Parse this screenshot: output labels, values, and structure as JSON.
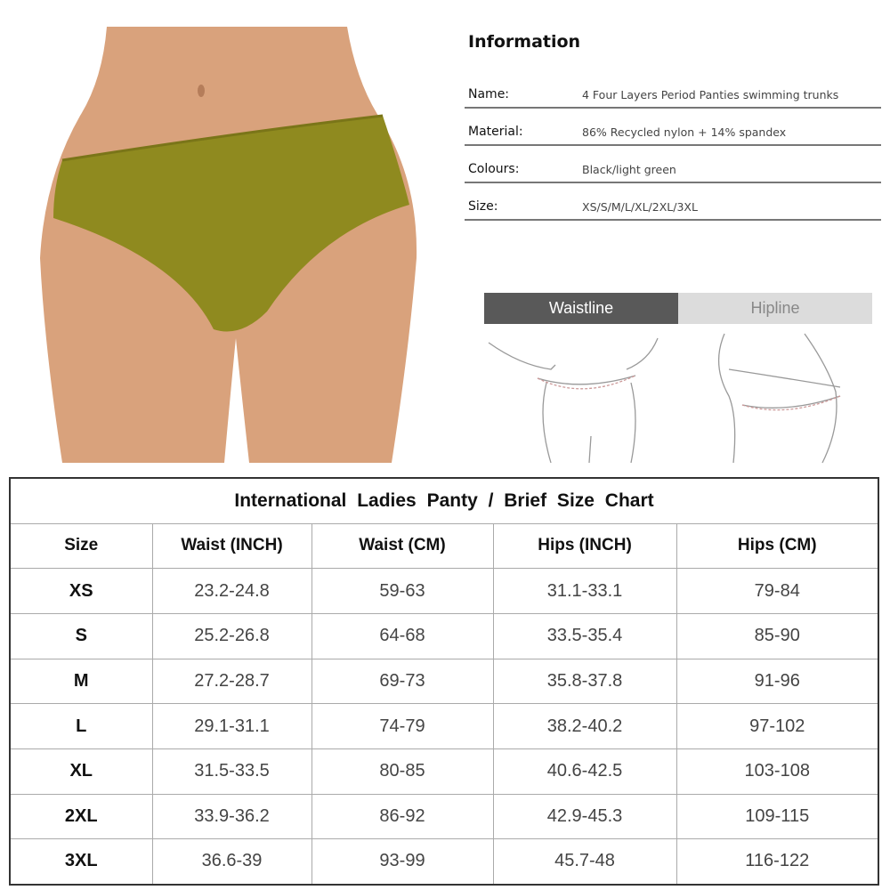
{
  "product_photo": {
    "garment_color": "#8f8a1f",
    "skin_color": "#d9a27c"
  },
  "info": {
    "heading": "Information",
    "rows": [
      {
        "label": "Name:",
        "value": "4 Four Layers Period Panties swimming trunks"
      },
      {
        "label": "Material:",
        "value": "86% Recycled nylon + 14% spandex"
      },
      {
        "label": "Colours:",
        "value": "Black/light green"
      },
      {
        "label": "Size:",
        "value": "XS/S/M/L/XL/2XL/3XL"
      }
    ]
  },
  "measure_tabs": {
    "waistline": "Waistline",
    "hipline": "Hipline"
  },
  "size_chart": {
    "title": "International  Ladies  Panty  /  Brief Size Chart",
    "headers": [
      "Size",
      "Waist (INCH)",
      "Waist (CM)",
      "Hips (INCH)",
      "Hips (CM)"
    ],
    "rows": [
      [
        "XS",
        "23.2-24.8",
        "59-63",
        "31.1-33.1",
        "79-84"
      ],
      [
        "S",
        "25.2-26.8",
        "64-68",
        "33.5-35.4",
        "85-90"
      ],
      [
        "M",
        "27.2-28.7",
        "69-73",
        "35.8-37.8",
        "91-96"
      ],
      [
        "L",
        "29.1-31.1",
        "74-79",
        "38.2-40.2",
        "97-102"
      ],
      [
        "XL",
        "31.5-33.5",
        "80-85",
        "40.6-42.5",
        "103-108"
      ],
      [
        "2XL",
        "33.9-36.2",
        "86-92",
        "42.9-45.3",
        "109-115"
      ],
      [
        "3XL",
        "36.6-39",
        "93-99",
        "45.7-48",
        "116-122"
      ]
    ]
  }
}
